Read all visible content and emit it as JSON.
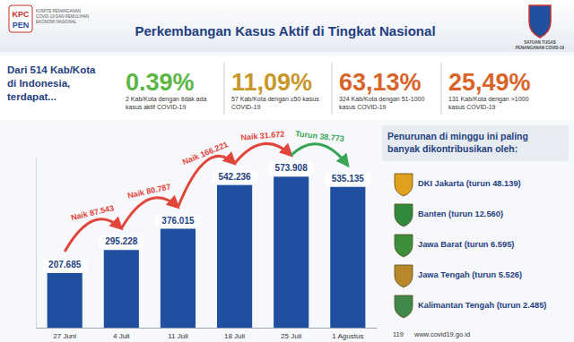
{
  "header": {
    "title": "Perkembangan Kasus Aktif di Tingkat Nasional",
    "logo_left": [
      "KPC",
      "PEN"
    ],
    "logo_left_caption": [
      "KOMITE PENANGANAN",
      "COVID-19 DAN PEMULIHAN",
      "EKONOMI NASIONAL"
    ],
    "logo_right_caption": [
      "SATUAN TUGAS",
      "PENANGANAN COVID-19"
    ]
  },
  "intro": [
    "Dari 514 Kab/Kota",
    "di Indonesia,",
    "terdapat..."
  ],
  "summary": [
    {
      "percent": "0.39%",
      "description": "2 Kab/Kota dengan tidak ada kasus aktif COVID-19",
      "color": "#5cb646"
    },
    {
      "percent": "11,09%",
      "description": "57 Kab/Kota dengan ≤50 kasus COVID-19",
      "color": "#c8972c"
    },
    {
      "percent": "63,13%",
      "description": "324 Kab/Kota dengan 51-1000 kasus COVID-19",
      "color": "#d8642a"
    },
    {
      "percent": "25,49%",
      "description": "131 Kab/Kota dengan >1000 kasus COVID-19",
      "color": "#d8642a"
    }
  ],
  "chart_data": {
    "type": "bar",
    "categories": [
      "27 Juni",
      "4 Juli",
      "11 Juli",
      "18 Juli",
      "25 Juli",
      "1 Agustus"
    ],
    "values": [
      207685,
      295228,
      376015,
      542236,
      573908,
      535135
    ],
    "value_labels": [
      "207.685",
      "295.228",
      "376.015",
      "542.236",
      "573.908",
      "535.135"
    ],
    "color": "#1f4f9e",
    "ylim": [
      0,
      650000
    ],
    "yticks": [],
    "grid": false,
    "data_labels": true,
    "tick_labels": "x",
    "annotations": [
      {
        "text": "Naik 87.543",
        "color": "#e2453a"
      },
      {
        "text": "Naik 80.787",
        "color": "#e2453a"
      },
      {
        "text": "Naik 166.221",
        "color": "#e2453a"
      },
      {
        "text": "Naik 31.672",
        "color": "#e2453a"
      },
      {
        "text": "Turun 38.773",
        "color": "#3aa655"
      }
    ]
  },
  "contributors": {
    "heading": [
      "Penurunan di minggu ini paling",
      "banyak dikontribusikan oleh:"
    ],
    "items": [
      "DKI Jakarta (turun 48.139)",
      "Banten (turun 12.560)",
      "Jawa Barat (turun 6.595)",
      "Jawa Tengah (turun 5.526)",
      "Kalimantan Tengah (turun 2.485)"
    ]
  },
  "footer": {
    "phone": "119",
    "website": "www.covid19.go.id"
  }
}
